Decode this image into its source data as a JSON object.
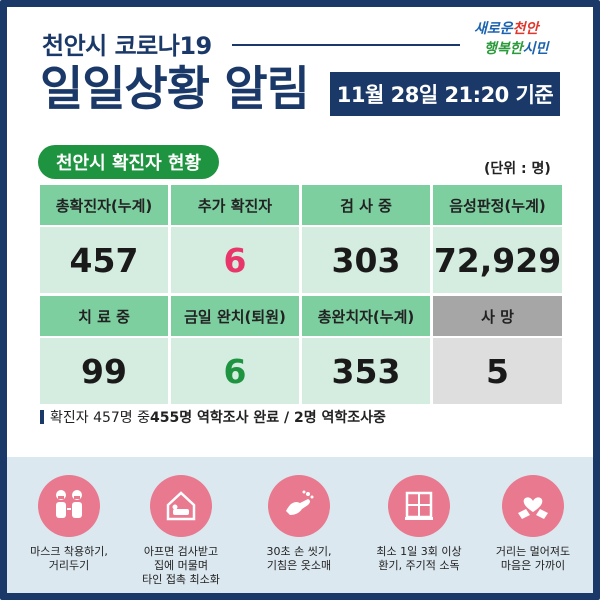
{
  "header": {
    "subtitle": "천안시 코로나19",
    "title": "일일상황 알림",
    "date": "11월 28일 21:20 기준",
    "logo_line1_a": "새로운",
    "logo_line1_b": "천안",
    "logo_line2_a": "행복한",
    "logo_line2_b": "시민"
  },
  "section": {
    "label": "천안시 확진자 현황",
    "unit": "(단위 : 명)"
  },
  "stats": {
    "row1": [
      {
        "label": "총확진자(누계)",
        "value": "457"
      },
      {
        "label": "추가 확진자",
        "value": "6"
      },
      {
        "label": "검 사 중",
        "value": "303"
      },
      {
        "label": "음성판정(누계)",
        "value": "72,929"
      }
    ],
    "row2": [
      {
        "label": "치 료 중",
        "value": "99"
      },
      {
        "label": "금일 완치(퇴원)",
        "value": "6"
      },
      {
        "label": "총완치자(누계)",
        "value": "353"
      },
      {
        "label": "사 망",
        "value": "5"
      }
    ]
  },
  "note": {
    "prefix": "확진자 457명 중 ",
    "bold": "455명 역학조사 완료 / 2명 역학조사중"
  },
  "guides": [
    {
      "icon": "masked-people-icon",
      "caption": "마스크 착용하기,\n거리두기"
    },
    {
      "icon": "stay-home-icon",
      "caption": "아프면 검사받고\n집에 머물며\n타인 접촉 최소화"
    },
    {
      "icon": "hand-washing-icon",
      "caption": "30초 손 씻기,\n기침은 옷소매"
    },
    {
      "icon": "window-ventilation-icon",
      "caption": "최소 1일 3회 이상\n환기, 주기적 소독"
    },
    {
      "icon": "heart-hands-icon",
      "caption": "거리는 멀어져도\n마음은 가까이"
    }
  ],
  "colors": {
    "navy": "#1b3968",
    "green": "#1e9440",
    "header_cell": "#7dcfa0",
    "value_cell": "#d4ede0",
    "accent_red": "#e8366a",
    "icon_circle": "#e9798e"
  }
}
